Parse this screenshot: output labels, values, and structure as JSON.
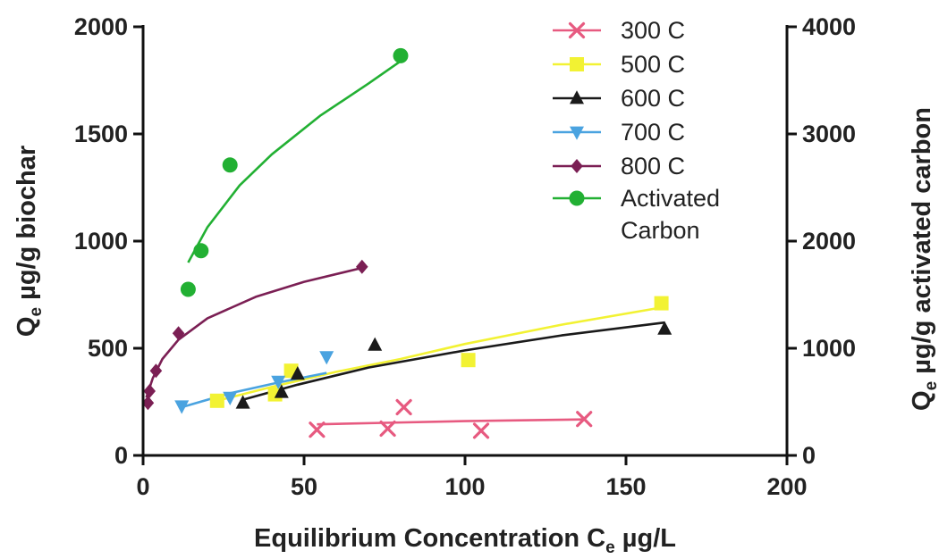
{
  "chart_data": {
    "type": "scatter",
    "xlabel": {
      "main": "Equilibrium Concentration C",
      "sub": "e",
      "unit": " µg/L"
    },
    "ylabel_left": {
      "main": "Q",
      "sub": "e",
      "unit": " µg/g biochar"
    },
    "ylabel_right": {
      "main": "Q",
      "sub": "e",
      "unit": " µg/g activated carbon"
    },
    "xlim": [
      0,
      200
    ],
    "ylim_left": [
      0,
      2000
    ],
    "ylim_right": [
      0,
      4000
    ],
    "x_ticks": [
      "0",
      "50",
      "100",
      "150",
      "200"
    ],
    "y_left_ticks": [
      "0",
      "500",
      "1000",
      "1500",
      "2000"
    ],
    "y_right_ticks": [
      "0",
      "1000",
      "2000",
      "3000",
      "4000"
    ],
    "legend_position": "top-right",
    "grid": false,
    "series": [
      {
        "name": "300 C",
        "marker": "x",
        "color": "#e75a80",
        "axis": "left",
        "points": [
          [
            54,
            120
          ],
          [
            76,
            125
          ],
          [
            81,
            225
          ],
          [
            105,
            115
          ],
          [
            137,
            170
          ]
        ],
        "fit": [
          [
            54,
            145
          ],
          [
            75,
            152
          ],
          [
            100,
            160
          ],
          [
            137,
            168
          ]
        ]
      },
      {
        "name": "500 C",
        "marker": "square",
        "color": "#f2f233",
        "axis": "left",
        "points": [
          [
            23,
            255
          ],
          [
            41,
            285
          ],
          [
            46,
            395
          ],
          [
            101,
            445
          ],
          [
            161,
            710
          ]
        ],
        "fit": [
          [
            23,
            255
          ],
          [
            40,
            320
          ],
          [
            60,
            390
          ],
          [
            80,
            450
          ],
          [
            100,
            520
          ],
          [
            130,
            610
          ],
          [
            161,
            690
          ]
        ]
      },
      {
        "name": "600 C",
        "marker": "triangle-up",
        "color": "#1a1a1a",
        "axis": "left",
        "points": [
          [
            31,
            245
          ],
          [
            43,
            295
          ],
          [
            48,
            380
          ],
          [
            72,
            515
          ],
          [
            162,
            590
          ]
        ],
        "fit": [
          [
            31,
            260
          ],
          [
            48,
            330
          ],
          [
            70,
            410
          ],
          [
            100,
            490
          ],
          [
            130,
            560
          ],
          [
            162,
            620
          ]
        ]
      },
      {
        "name": "700 C",
        "marker": "triangle-down",
        "color": "#4aa3e0",
        "axis": "left",
        "points": [
          [
            12,
            230
          ],
          [
            27,
            270
          ],
          [
            42,
            345
          ],
          [
            57,
            460
          ]
        ],
        "fit": [
          [
            12,
            225
          ],
          [
            27,
            290
          ],
          [
            42,
            340
          ],
          [
            57,
            385
          ]
        ]
      },
      {
        "name": "800 C",
        "marker": "diamond",
        "color": "#7b1f54",
        "axis": "left",
        "points": [
          [
            1.5,
            245
          ],
          [
            2,
            300
          ],
          [
            4,
            395
          ],
          [
            11,
            570
          ],
          [
            68,
            880
          ]
        ],
        "fit": [
          [
            1,
            270
          ],
          [
            3,
            360
          ],
          [
            6,
            450
          ],
          [
            11,
            540
          ],
          [
            20,
            640
          ],
          [
            35,
            740
          ],
          [
            50,
            810
          ],
          [
            68,
            875
          ]
        ]
      },
      {
        "name": "Activated\nCarbon",
        "marker": "circle",
        "color": "#22b033",
        "axis": "right",
        "points": [
          [
            14,
            1550
          ],
          [
            18,
            1910
          ],
          [
            27,
            2710
          ],
          [
            80,
            3730
          ]
        ],
        "fit": [
          [
            14,
            1800
          ],
          [
            20,
            2130
          ],
          [
            30,
            2520
          ],
          [
            40,
            2810
          ],
          [
            55,
            3170
          ],
          [
            70,
            3470
          ],
          [
            80,
            3680
          ]
        ]
      }
    ]
  }
}
